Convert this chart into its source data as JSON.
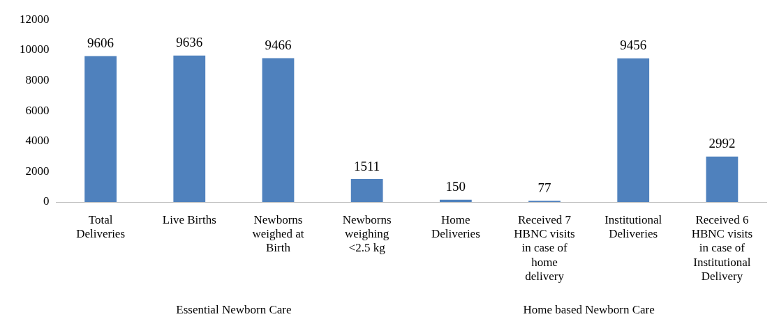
{
  "chart_data": {
    "type": "bar",
    "categories": [
      "Total Deliveries",
      "Live Births",
      "Newborns weighed at Birth",
      "Newborns weighing <2.5 kg",
      "Home Deliveries",
      "Received 7 HBNC visits in case of home delivery",
      "Institutional Deliveries",
      "Received 6 HBNC visits in case of Institutional Delivery"
    ],
    "values": [
      9606,
      9636,
      9466,
      1511,
      150,
      77,
      9456,
      2992
    ],
    "color": "#4f81bd",
    "ylim": [
      0,
      12000
    ],
    "yticks": [
      0,
      2000,
      4000,
      6000,
      8000,
      10000,
      12000
    ],
    "grid": false,
    "legend": false,
    "data_labels": true,
    "annotations": [
      "Essential Newborn Care",
      "Home based Newborn Care"
    ]
  }
}
